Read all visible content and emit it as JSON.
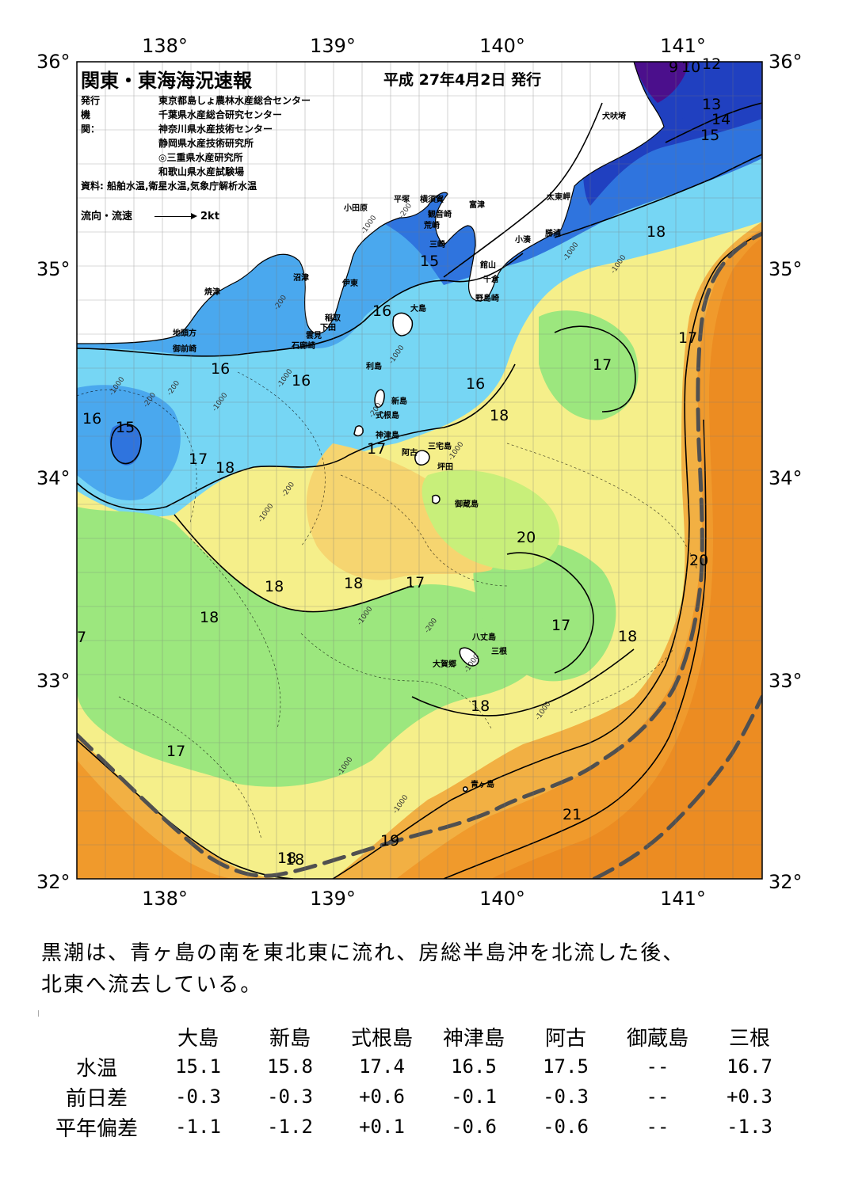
{
  "map": {
    "title": "関東・東海海況速報",
    "issue_date": "平成 27年4月2日 発行",
    "issuer_label": "発行機関：",
    "issuers": [
      "東京都島しょ農林水産総合センター",
      "千葉県水産総合研究センター",
      "神奈川県水産技術センター",
      "静岡県水産技術研究所",
      "◎三重県水産研究所",
      "和歌山県水産試験場"
    ],
    "source": "資料: 船舶水温,衛星水温,気象庁解析水温",
    "flow_label": "流向・流速",
    "flow_scale": "2kt",
    "lon_labels": [
      "138°",
      "139°",
      "140°",
      "141°"
    ],
    "lat_labels": [
      "36°",
      "35°",
      "34°",
      "33°",
      "32°"
    ],
    "place_labels": [
      "犬吠埼",
      "太東岬",
      "勝浦",
      "小湊",
      "富津",
      "館山",
      "千倉",
      "野島崎",
      "平塚",
      "横須賀",
      "観音崎",
      "荒崎",
      "三崎",
      "小田原",
      "沼津",
      "伊東",
      "焼津",
      "稲取",
      "下田",
      "雲見",
      "石廊崎",
      "地頭方",
      "御前崎",
      "大島",
      "利島",
      "新島",
      "式根島",
      "神津島",
      "三宅島",
      "阿古",
      "坪田",
      "御蔵島",
      "八丈島",
      "三根",
      "大賀郷",
      "青ヶ島"
    ],
    "isotherm_labels": [
      "9",
      "10",
      "12",
      "13",
      "14",
      "15",
      "18",
      "15",
      "16",
      "16",
      "16",
      "16",
      "16",
      "15",
      "17",
      "18",
      "17",
      "17",
      "18",
      "17",
      "20",
      "20",
      "18",
      "18",
      "18",
      "17",
      "18",
      "17",
      "18",
      "18",
      "17",
      "19",
      "18",
      "21",
      "7"
    ],
    "depth_labels": [
      "-200",
      "-1000",
      "-200",
      "-1000",
      "-200",
      "-1000",
      "-200",
      "-1000",
      "-1000",
      "-200",
      "-1000",
      "-200",
      "-1000",
      "-1000",
      "-1000",
      "-200",
      "-1000",
      "-1000",
      "-1000",
      "-1000",
      "-1000"
    ],
    "colors": {
      "land": "#ffffff",
      "t9": "#4b0f8c",
      "t12": "#2040c0",
      "t14": "#2f74de",
      "t15": "#4aa8ee",
      "t16": "#76d6f4",
      "t17": "#8de6b6",
      "t17b": "#9ce77e",
      "t18": "#c8ef7a",
      "t18b": "#f5ef8a",
      "t18c": "#f6d570",
      "t19": "#f2b043",
      "t20": "#f09a2c",
      "t21": "#ec8c22",
      "kuroshio": "#505050"
    }
  },
  "summary_lines": [
    "黒潮は、青ヶ島の南を東北東に流れ、房総半島沖を北流した後、",
    "北東へ流去している。"
  ],
  "table": {
    "columns": [
      "大島",
      "新島",
      "式根島",
      "神津島",
      "阿古",
      "御蔵島",
      "三根"
    ],
    "rows": [
      {
        "label": "水温",
        "values": [
          "15.1",
          "15.8",
          "17.4",
          "16.5",
          "17.5",
          "--",
          "16.7"
        ]
      },
      {
        "label": "前日差",
        "values": [
          "-0.3",
          "-0.3",
          "+0.6",
          "-0.1",
          "-0.3",
          "--",
          "+0.3"
        ]
      },
      {
        "label": "平年偏差",
        "values": [
          "-1.1",
          "-1.2",
          "+0.1",
          "-0.6",
          "-0.6",
          "--",
          "-1.3"
        ]
      }
    ]
  }
}
